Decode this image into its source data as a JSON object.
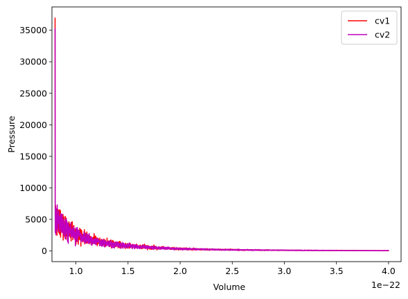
{
  "chart_data": {
    "type": "line",
    "title": "",
    "xlabel": "Volume",
    "ylabel": "Pressure",
    "x_offset_label": "1e−22",
    "xlim": [
      0.77,
      4.12
    ],
    "ylim": [
      -1700,
      38700
    ],
    "x_ticks": [
      1.0,
      1.5,
      2.0,
      2.5,
      3.0,
      3.5,
      4.0
    ],
    "x_tick_labels": [
      "1.0",
      "1.5",
      "2.0",
      "2.5",
      "3.0",
      "3.5",
      "4.0"
    ],
    "y_ticks": [
      0,
      5000,
      10000,
      15000,
      20000,
      25000,
      30000,
      35000
    ],
    "y_tick_labels": [
      "0",
      "5000",
      "10000",
      "15000",
      "20000",
      "25000",
      "30000",
      "35000"
    ],
    "legend_position": "top-right",
    "grid": false,
    "series": [
      {
        "name": "cv1",
        "color": "#ff0000",
        "x_range": [
          0.8,
          4.0
        ],
        "trend_constant": 2200,
        "noise_fraction": 0.24,
        "peak_start": 37000
      },
      {
        "name": "cv2",
        "color": "#bf00bf",
        "x_range": [
          0.8,
          4.0
        ],
        "trend_constant": 2150,
        "noise_fraction": 0.22,
        "peak_start": 35300
      }
    ]
  }
}
